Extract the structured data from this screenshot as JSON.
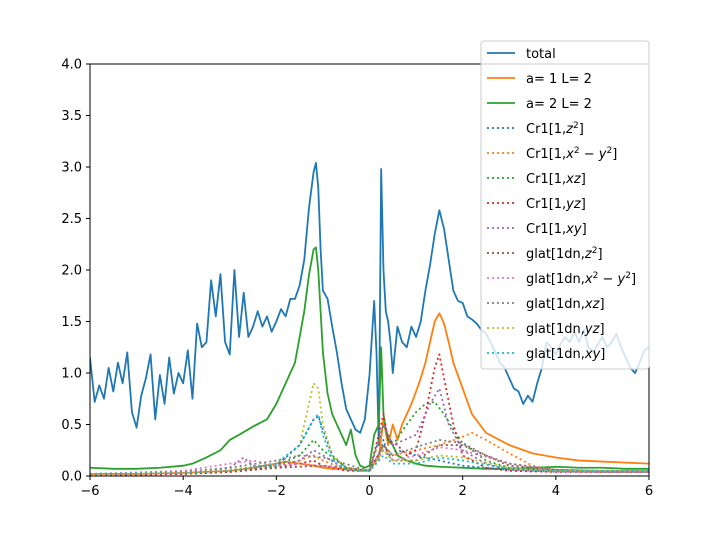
{
  "chart_data": {
    "type": "line",
    "title": "",
    "xlabel": "",
    "ylabel": "",
    "xlim": [
      -6,
      6
    ],
    "ylim": [
      0,
      4.0
    ],
    "xticks": [
      -6,
      -4,
      -2,
      0,
      2,
      4,
      6
    ],
    "xtick_labels": [
      "−6",
      "−4",
      "−2",
      "0",
      "2",
      "4",
      "6"
    ],
    "yticks": [
      0,
      0.5,
      1.0,
      1.5,
      2.0,
      2.5,
      3.0,
      3.5,
      4.0
    ],
    "ytick_labels": [
      "0.0",
      "0.5",
      "1.0",
      "1.5",
      "2.0",
      "2.5",
      "3.0",
      "3.5",
      "4.0"
    ],
    "grid": false,
    "legend_position": "top-right",
    "series": [
      {
        "name": "total",
        "color": "#1f77b4",
        "style": "solid",
        "x": [
          -6,
          -5.9,
          -5.8,
          -5.7,
          -5.6,
          -5.5,
          -5.4,
          -5.3,
          -5.2,
          -5.1,
          -5,
          -4.9,
          -4.8,
          -4.7,
          -4.6,
          -4.5,
          -4.4,
          -4.3,
          -4.2,
          -4.1,
          -4,
          -3.9,
          -3.8,
          -3.7,
          -3.6,
          -3.5,
          -3.4,
          -3.3,
          -3.2,
          -3.1,
          -3,
          -2.9,
          -2.8,
          -2.7,
          -2.6,
          -2.5,
          -2.4,
          -2.3,
          -2.2,
          -2.1,
          -2,
          -1.9,
          -1.8,
          -1.7,
          -1.6,
          -1.5,
          -1.4,
          -1.3,
          -1.2,
          -1.15,
          -1.1,
          -1.05,
          -1,
          -0.9,
          -0.8,
          -0.7,
          -0.6,
          -0.5,
          -0.4,
          -0.3,
          -0.2,
          -0.1,
          0,
          0.1,
          0.15,
          0.2,
          0.25,
          0.3,
          0.35,
          0.4,
          0.45,
          0.5,
          0.6,
          0.7,
          0.8,
          0.9,
          1,
          1.1,
          1.2,
          1.3,
          1.4,
          1.5,
          1.6,
          1.7,
          1.8,
          1.9,
          2,
          2.1,
          2.2,
          2.3,
          2.4,
          2.5,
          2.6,
          2.7,
          2.8,
          2.9,
          3,
          3.1,
          3.2,
          3.3,
          3.4,
          3.5,
          3.6,
          3.7,
          3.8,
          3.9,
          4,
          4.1,
          4.2,
          4.3,
          4.4,
          4.5,
          4.6,
          4.7,
          4.8,
          4.9,
          5,
          5.1,
          5.2,
          5.3,
          5.4,
          5.5,
          5.6,
          5.7,
          5.8,
          5.9,
          6
        ],
        "y": [
          1.15,
          0.72,
          0.88,
          0.75,
          1.05,
          0.82,
          1.1,
          0.9,
          1.2,
          0.62,
          0.47,
          0.78,
          0.95,
          1.18,
          0.55,
          0.98,
          0.7,
          1.15,
          0.8,
          1.0,
          0.9,
          1.22,
          0.75,
          1.48,
          1.25,
          1.3,
          1.9,
          1.55,
          1.96,
          1.3,
          1.18,
          2.0,
          1.35,
          1.78,
          1.35,
          1.45,
          1.6,
          1.45,
          1.55,
          1.4,
          1.5,
          1.62,
          1.55,
          1.72,
          1.72,
          1.85,
          2.1,
          2.6,
          2.95,
          3.04,
          2.8,
          2.2,
          1.8,
          1.72,
          1.45,
          1.2,
          0.9,
          0.65,
          0.55,
          0.45,
          0.42,
          0.55,
          0.98,
          1.7,
          1.2,
          0.3,
          2.98,
          2.0,
          1.6,
          1.5,
          1.3,
          1.0,
          1.45,
          1.3,
          1.25,
          1.45,
          1.35,
          1.5,
          1.8,
          2.05,
          2.35,
          2.58,
          2.4,
          2.1,
          1.8,
          1.7,
          1.68,
          1.55,
          1.52,
          1.48,
          1.42,
          1.38,
          1.3,
          1.2,
          1.1,
          1.05,
          0.95,
          0.85,
          0.82,
          0.7,
          0.78,
          0.72,
          0.9,
          1.05,
          1.3,
          1.25,
          1.18,
          1.28,
          1.35,
          1.3,
          1.4,
          1.3,
          1.42,
          1.25,
          1.2,
          1.28,
          1.35,
          1.25,
          1.3,
          1.38,
          1.25,
          1.15,
          1.05,
          1.0,
          1.1,
          1.22,
          1.25
        ]
      },
      {
        "name": "a= 1 L= 2",
        "color": "#ff7f0e",
        "style": "solid",
        "x": [
          -6,
          -5,
          -4,
          -3,
          -2.5,
          -2,
          -1.8,
          -1.5,
          -1.2,
          -1.1,
          -1,
          -0.8,
          -0.6,
          -0.4,
          -0.2,
          0,
          0.2,
          0.3,
          0.4,
          0.5,
          0.6,
          0.7,
          0.8,
          0.9,
          1,
          1.1,
          1.2,
          1.3,
          1.4,
          1.5,
          1.6,
          1.7,
          1.8,
          2,
          2.2,
          2.5,
          3,
          3.5,
          4,
          4.5,
          5,
          5.5,
          6
        ],
        "y": [
          0.02,
          0.02,
          0.03,
          0.05,
          0.08,
          0.12,
          0.14,
          0.12,
          0.1,
          0.09,
          0.08,
          0.07,
          0.07,
          0.06,
          0.05,
          0.06,
          0.18,
          0.55,
          0.3,
          0.5,
          0.35,
          0.5,
          0.6,
          0.7,
          0.82,
          0.95,
          1.1,
          1.3,
          1.5,
          1.58,
          1.48,
          1.3,
          1.1,
          0.85,
          0.6,
          0.42,
          0.3,
          0.22,
          0.18,
          0.15,
          0.14,
          0.13,
          0.12
        ]
      },
      {
        "name": "a= 2 L= 2",
        "color": "#2ca02c",
        "style": "solid",
        "x": [
          -6,
          -5.5,
          -5,
          -4.5,
          -4,
          -3.8,
          -3.5,
          -3.2,
          -3,
          -2.8,
          -2.5,
          -2.2,
          -2,
          -1.8,
          -1.6,
          -1.4,
          -1.3,
          -1.2,
          -1.15,
          -1.1,
          -1.05,
          -1,
          -0.9,
          -0.8,
          -0.7,
          -0.6,
          -0.5,
          -0.4,
          -0.3,
          -0.2,
          -0.1,
          0,
          0.1,
          0.2,
          0.25,
          0.3,
          0.35,
          0.4,
          0.5,
          0.6,
          0.8,
          1,
          1.2,
          1.5,
          2,
          2.5,
          3,
          3.5,
          4,
          4.5,
          5,
          5.5,
          6
        ],
        "y": [
          0.08,
          0.07,
          0.07,
          0.08,
          0.1,
          0.12,
          0.18,
          0.25,
          0.35,
          0.4,
          0.48,
          0.55,
          0.7,
          0.9,
          1.1,
          1.6,
          1.95,
          2.2,
          2.22,
          2.0,
          1.6,
          1.2,
          0.8,
          0.6,
          0.5,
          0.4,
          0.3,
          0.45,
          0.2,
          0.1,
          0.08,
          0.1,
          0.4,
          0.5,
          1.25,
          0.6,
          0.45,
          0.35,
          0.3,
          0.2,
          0.15,
          0.12,
          0.1,
          0.09,
          0.08,
          0.07,
          0.07,
          0.08,
          0.09,
          0.08,
          0.08,
          0.07,
          0.07
        ]
      },
      {
        "name": "Cr1[1,$z^2$]",
        "color": "#1f77b4",
        "style": "dotted",
        "x": [
          -6,
          -4,
          -3,
          -2,
          -1.5,
          -1.2,
          -1.1,
          -1,
          -0.8,
          -0.5,
          0,
          0.2,
          0.3,
          0.4,
          0.6,
          1,
          1.5,
          2,
          2.5,
          3,
          4,
          5,
          6
        ],
        "y": [
          0.01,
          0.02,
          0.05,
          0.1,
          0.3,
          0.55,
          0.58,
          0.45,
          0.2,
          0.08,
          0.05,
          0.15,
          0.35,
          0.2,
          0.25,
          0.2,
          0.15,
          0.1,
          0.08,
          0.06,
          0.05,
          0.04,
          0.04
        ]
      },
      {
        "name": "Cr1[1,$x^2-y^2$]",
        "color": "#ff7f0e",
        "style": "dotted",
        "x": [
          -6,
          -4,
          -3,
          -2,
          -1.5,
          -1.2,
          -1,
          -0.5,
          0,
          0.3,
          0.5,
          1,
          1.5,
          2,
          2.2,
          2.5,
          3,
          3.5,
          4,
          5,
          6
        ],
        "y": [
          0.01,
          0.02,
          0.04,
          0.08,
          0.15,
          0.2,
          0.15,
          0.06,
          0.05,
          0.3,
          0.2,
          0.25,
          0.3,
          0.38,
          0.42,
          0.35,
          0.22,
          0.1,
          0.06,
          0.04,
          0.04
        ]
      },
      {
        "name": "Cr1[1,$xz$]",
        "color": "#2ca02c",
        "style": "dotted",
        "x": [
          -6,
          -4,
          -3,
          -2,
          -1.5,
          -1.2,
          -1,
          -0.5,
          0,
          0.3,
          0.5,
          0.8,
          1,
          1.2,
          1.4,
          1.6,
          1.8,
          2,
          2.5,
          3,
          4,
          5,
          6
        ],
        "y": [
          0.01,
          0.02,
          0.04,
          0.1,
          0.2,
          0.35,
          0.25,
          0.08,
          0.05,
          0.5,
          0.3,
          0.5,
          0.62,
          0.7,
          0.72,
          0.6,
          0.45,
          0.32,
          0.15,
          0.08,
          0.05,
          0.04,
          0.04
        ]
      },
      {
        "name": "Cr1[1,$yz$]",
        "color": "#d62728",
        "style": "dotted",
        "x": [
          -6,
          -4,
          -3,
          -2,
          -1.5,
          -1.2,
          -1,
          -0.5,
          0,
          0.2,
          0.3,
          0.4,
          0.6,
          0.8,
          1,
          1.2,
          1.4,
          1.5,
          1.6,
          1.8,
          2,
          2.5,
          3,
          4,
          5,
          6
        ],
        "y": [
          0.01,
          0.02,
          0.04,
          0.08,
          0.12,
          0.15,
          0.1,
          0.05,
          0.05,
          0.4,
          0.6,
          0.35,
          0.3,
          0.2,
          0.25,
          0.6,
          1.05,
          1.18,
          0.95,
          0.5,
          0.2,
          0.08,
          0.05,
          0.04,
          0.04,
          0.04
        ]
      },
      {
        "name": "Cr1[1,$xy$]",
        "color": "#9467bd",
        "style": "dotted",
        "x": [
          -6,
          -4,
          -3,
          -2.7,
          -2.5,
          -2,
          -1.5,
          -1.2,
          -1,
          -0.5,
          0,
          0.3,
          0.5,
          1,
          1.3,
          1.5,
          1.7,
          2,
          2.5,
          3,
          4,
          5,
          6
        ],
        "y": [
          0.01,
          0.03,
          0.08,
          0.18,
          0.1,
          0.1,
          0.15,
          0.25,
          0.2,
          0.06,
          0.05,
          0.5,
          0.3,
          0.4,
          0.7,
          0.85,
          0.5,
          0.25,
          0.12,
          0.06,
          0.04,
          0.04,
          0.04
        ]
      },
      {
        "name": "glat[1dn,$z^2$]",
        "color": "#8c564b",
        "style": "dotted",
        "x": [
          -6,
          -4,
          -3,
          -2,
          -1,
          0,
          0.3,
          0.5,
          1,
          1.5,
          2,
          2.5,
          3,
          4,
          5,
          6
        ],
        "y": [
          0.02,
          0.03,
          0.05,
          0.08,
          0.1,
          0.05,
          0.3,
          0.15,
          0.15,
          0.3,
          0.3,
          0.2,
          0.1,
          0.06,
          0.05,
          0.05
        ]
      },
      {
        "name": "glat[1dn,$x^2-y^2$]",
        "color": "#e377c2",
        "style": "dotted",
        "x": [
          -6,
          -4,
          -3,
          -2.5,
          -2,
          -1.5,
          -1,
          0,
          0.3,
          0.5,
          1,
          1.5,
          2,
          3,
          4,
          5,
          6
        ],
        "y": [
          0.02,
          0.05,
          0.12,
          0.15,
          0.1,
          0.12,
          0.1,
          0.05,
          0.25,
          0.15,
          0.2,
          0.28,
          0.25,
          0.12,
          0.06,
          0.05,
          0.05
        ]
      },
      {
        "name": "glat[1dn,$xz$]",
        "color": "#7f7f7f",
        "style": "dotted",
        "x": [
          -6,
          -4,
          -3,
          -2,
          -1.5,
          -1,
          0,
          0.3,
          0.5,
          1,
          1.5,
          2,
          2.5,
          3,
          4,
          5,
          6
        ],
        "y": [
          0.02,
          0.04,
          0.08,
          0.15,
          0.2,
          0.18,
          0.05,
          0.3,
          0.2,
          0.28,
          0.35,
          0.32,
          0.2,
          0.12,
          0.06,
          0.05,
          0.05
        ]
      },
      {
        "name": "glat[1dn,$yz$]",
        "color": "#bcbd22",
        "style": "dotted",
        "x": [
          -6,
          -4,
          -3,
          -2,
          -1.5,
          -1.2,
          -1.1,
          -1,
          -0.8,
          -0.5,
          0,
          0.3,
          0.5,
          1,
          1.5,
          2,
          3,
          4,
          5,
          6
        ],
        "y": [
          0.02,
          0.03,
          0.06,
          0.12,
          0.3,
          0.9,
          0.85,
          0.5,
          0.2,
          0.08,
          0.05,
          0.25,
          0.15,
          0.15,
          0.2,
          0.18,
          0.08,
          0.05,
          0.05,
          0.05
        ]
      },
      {
        "name": "glat[1dn,$xy$]",
        "color": "#17becf",
        "style": "dotted",
        "x": [
          -6,
          -4,
          -3,
          -2,
          -1.5,
          -1.2,
          -1.1,
          -1,
          -0.8,
          -0.5,
          0,
          0.3,
          0.5,
          1,
          1.5,
          2,
          3,
          4,
          5,
          6
        ],
        "y": [
          0.02,
          0.03,
          0.05,
          0.12,
          0.3,
          0.55,
          0.6,
          0.4,
          0.15,
          0.06,
          0.05,
          0.2,
          0.12,
          0.12,
          0.18,
          0.15,
          0.07,
          0.05,
          0.05,
          0.05
        ]
      }
    ],
    "legend": {
      "entries": [
        {
          "text": "total",
          "color": "#1f77b4",
          "style": "solid"
        },
        {
          "text": "a= 1 L= 2",
          "color": "#ff7f0e",
          "style": "solid"
        },
        {
          "text": "a= 2 L= 2",
          "color": "#2ca02c",
          "style": "solid"
        },
        {
          "text": "Cr1[1,",
          "math": "z",
          "sup": "2",
          "tail": "]",
          "color": "#1f77b4",
          "style": "dotted"
        },
        {
          "text": "Cr1[1,",
          "math": "x",
          "sup": "2",
          "math2": " − y",
          "sup2": "2",
          "tail": "]",
          "color": "#ff7f0e",
          "style": "dotted"
        },
        {
          "text": "Cr1[1,",
          "math": "xz",
          "tail": "]",
          "color": "#2ca02c",
          "style": "dotted"
        },
        {
          "text": "Cr1[1,",
          "math": "yz",
          "tail": "]",
          "color": "#d62728",
          "style": "dotted"
        },
        {
          "text": "Cr1[1,",
          "math": "xy",
          "tail": "]",
          "color": "#9467bd",
          "style": "dotted"
        },
        {
          "text": "glat[1dn,",
          "math": "z",
          "sup": "2",
          "tail": "]",
          "color": "#8c564b",
          "style": "dotted"
        },
        {
          "text": "glat[1dn,",
          "math": "x",
          "sup": "2",
          "math2": " − y",
          "sup2": "2",
          "tail": "]",
          "color": "#e377c2",
          "style": "dotted"
        },
        {
          "text": "glat[1dn,",
          "math": "xz",
          "tail": "]",
          "color": "#7f7f7f",
          "style": "dotted"
        },
        {
          "text": "glat[1dn,",
          "math": "yz",
          "tail": "]",
          "color": "#bcbd22",
          "style": "dotted"
        },
        {
          "text": "glat[1dn,",
          "math": "xy",
          "tail": "]",
          "color": "#17becf",
          "style": "dotted"
        }
      ]
    }
  }
}
